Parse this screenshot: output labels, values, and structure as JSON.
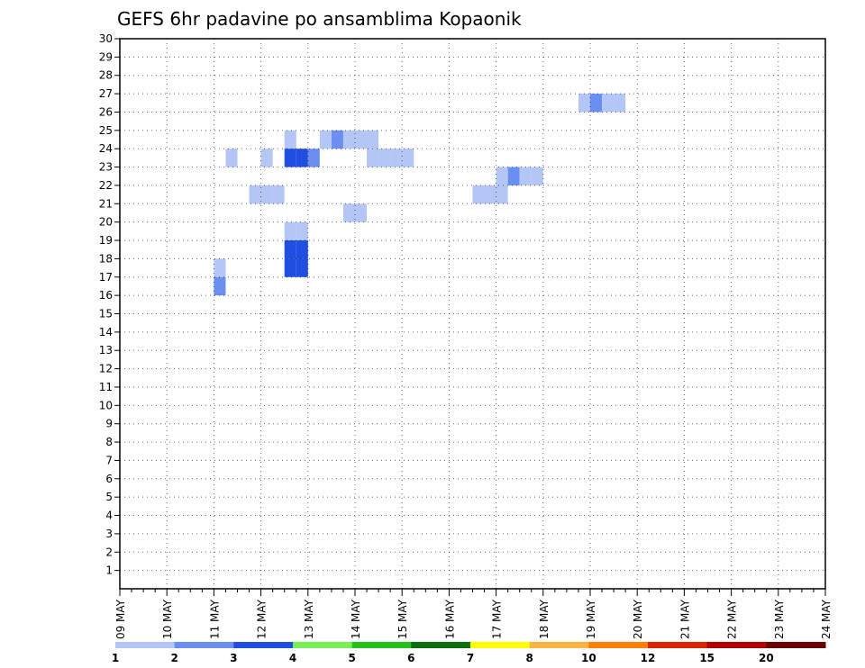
{
  "chart_data": {
    "type": "heatmap",
    "title": "GEFS 6hr padavine po ansamblima Kopaonik",
    "xlabel": "",
    "ylabel": "",
    "x_tick_labels": [
      "09 MAY",
      "10 MAY",
      "11 MAY",
      "12 MAY",
      "13 MAY",
      "14 MAY",
      "15 MAY",
      "16 MAY",
      "17 MAY",
      "18 MAY",
      "19 MAY",
      "20 MAY",
      "21 MAY",
      "22 MAY",
      "23 MAY",
      "24 MAY"
    ],
    "x_unit": "6-hour step",
    "xlim": [
      0,
      60
    ],
    "y_tick_labels": [
      "1",
      "2",
      "3",
      "4",
      "5",
      "6",
      "7",
      "8",
      "9",
      "10",
      "11",
      "12",
      "13",
      "14",
      "15",
      "16",
      "17",
      "18",
      "19",
      "20",
      "21",
      "22",
      "23",
      "24",
      "25",
      "26",
      "27",
      "28",
      "29",
      "30"
    ],
    "ylim": [
      0,
      30
    ],
    "grid": true,
    "colorbar": {
      "position": "bottom",
      "labels": [
        "1",
        "2",
        "3",
        "4",
        "5",
        "6",
        "7",
        "8",
        "10",
        "12",
        "15",
        "20"
      ],
      "colors": [
        "#b3c6f5",
        "#6b8ff0",
        "#1f4ee0",
        "#77ee55",
        "#22c21a",
        "#0a6e0a",
        "#ffff00",
        "#ffb340",
        "#ff7f00",
        "#dd2200",
        "#b30000",
        "#6b0000"
      ]
    },
    "cells": [
      {
        "x": 14,
        "y": 24,
        "v": 1
      },
      {
        "x": 17,
        "y": 24,
        "v": 1
      },
      {
        "x": 18,
        "y": 24,
        "v": 2
      },
      {
        "x": 19,
        "y": 24,
        "v": 1
      },
      {
        "x": 20,
        "y": 24,
        "v": 1
      },
      {
        "x": 21,
        "y": 24,
        "v": 1
      },
      {
        "x": 12,
        "y": 23,
        "v": 1
      },
      {
        "x": 14,
        "y": 23,
        "v": 3
      },
      {
        "x": 15,
        "y": 23,
        "v": 3
      },
      {
        "x": 16,
        "y": 23,
        "v": 2
      },
      {
        "x": 21,
        "y": 23,
        "v": 1
      },
      {
        "x": 22,
        "y": 23,
        "v": 1
      },
      {
        "x": 23,
        "y": 23,
        "v": 1
      },
      {
        "x": 24,
        "y": 23,
        "v": 1
      },
      {
        "x": 32,
        "y": 22,
        "v": 1
      },
      {
        "x": 33,
        "y": 22,
        "v": 2
      },
      {
        "x": 34,
        "y": 22,
        "v": 1
      },
      {
        "x": 35,
        "y": 22,
        "v": 1
      },
      {
        "x": 30,
        "y": 21,
        "v": 1
      },
      {
        "x": 31,
        "y": 21,
        "v": 1
      },
      {
        "x": 32,
        "y": 21,
        "v": 1
      },
      {
        "x": 19,
        "y": 20,
        "v": 1
      },
      {
        "x": 20,
        "y": 20,
        "v": 1
      },
      {
        "x": 39,
        "y": 26,
        "v": 1
      },
      {
        "x": 40,
        "y": 26,
        "v": 2
      },
      {
        "x": 41,
        "y": 26,
        "v": 1
      },
      {
        "x": 42,
        "y": 26,
        "v": 1
      },
      {
        "x": 14,
        "y": 19,
        "v": 1
      },
      {
        "x": 15,
        "y": 19,
        "v": 1
      },
      {
        "x": 14,
        "y": 18,
        "v": 3
      },
      {
        "x": 15,
        "y": 18,
        "v": 3
      },
      {
        "x": 14,
        "y": 17,
        "v": 3
      },
      {
        "x": 15,
        "y": 17,
        "v": 3
      },
      {
        "x": 11,
        "y": 21,
        "v": 1
      },
      {
        "x": 12,
        "y": 21,
        "v": 1
      },
      {
        "x": 13,
        "y": 21,
        "v": 1
      },
      {
        "x": 9,
        "y": 23,
        "v": 1
      },
      {
        "x": 8,
        "y": 16,
        "v": 2
      },
      {
        "x": 8,
        "y": 17,
        "v": 1
      }
    ]
  }
}
